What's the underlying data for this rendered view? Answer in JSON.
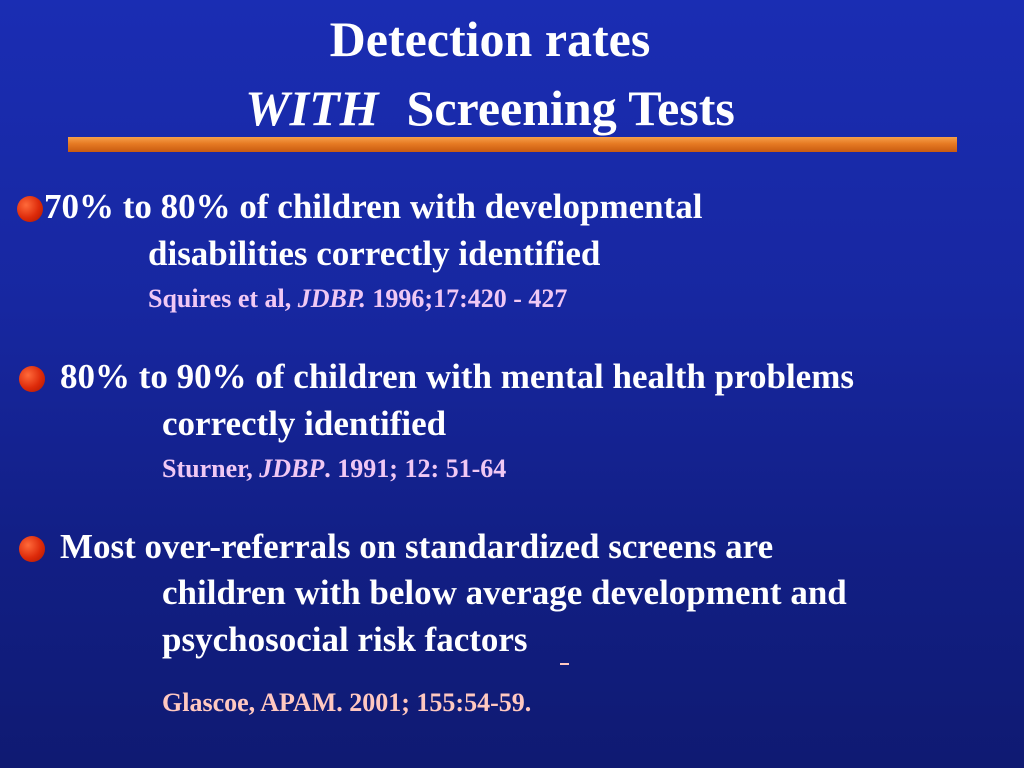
{
  "slide": {
    "title_line1": "Detection rates",
    "title_line2_emphasis": "WITH",
    "title_line2_rest": "Screening Tests"
  },
  "points": [
    {
      "line1": "70% to 80% of children with developmental",
      "line2": "disabilities  correctly identified",
      "ref_author": "Squires et al,",
      "ref_journal": "JDBP.",
      "ref_detail": "1996;17:420 - 427"
    },
    {
      "line1": "80% to 90% of children with mental health problems",
      "line2": "correctly identified",
      "ref_author": "Sturner,",
      "ref_journal": "JDBP",
      "ref_detail": ". 1991; 12: 51-64"
    },
    {
      "line1": "Most over-referrals on standardized screens are",
      "line2": "children with  below average development and",
      "line3": "psychosocial risk factors",
      "ref_full": "Glascoe, APAM. 2001;  155:54-59."
    }
  ],
  "colors": {
    "background": "#1727a0",
    "rule": "#e67a23",
    "bullet": "#dd2a0a",
    "reference_1_2": "#f0c8f4",
    "reference_3": "#ffc8c0"
  }
}
